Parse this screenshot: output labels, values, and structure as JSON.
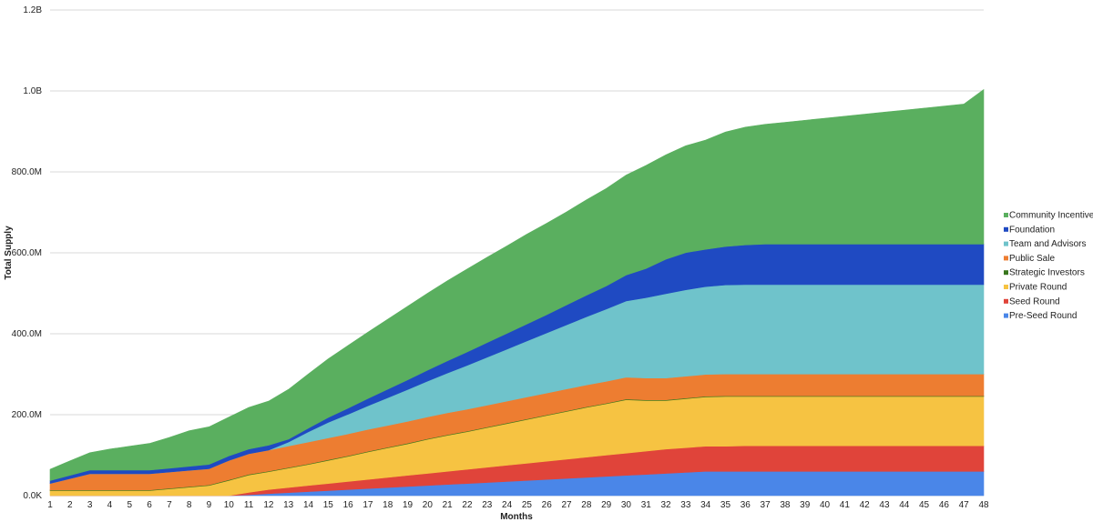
{
  "chart_data": {
    "type": "area",
    "stacked": true,
    "title": "",
    "xlabel": "Months",
    "ylabel": "Total Supply",
    "x": [
      1,
      2,
      3,
      4,
      5,
      6,
      7,
      8,
      9,
      10,
      11,
      12,
      13,
      14,
      15,
      16,
      17,
      18,
      19,
      20,
      21,
      22,
      23,
      24,
      25,
      26,
      27,
      28,
      29,
      30,
      31,
      32,
      33,
      34,
      35,
      36,
      37,
      38,
      39,
      40,
      41,
      42,
      43,
      44,
      45,
      46,
      47,
      48
    ],
    "x_tick_labels": [
      "1",
      "2",
      "3",
      "4",
      "5",
      "6",
      "7",
      "8",
      "9",
      "10",
      "11",
      "12",
      "13",
      "14",
      "15",
      "16",
      "17",
      "18",
      "19",
      "20",
      "21",
      "22",
      "23",
      "24",
      "25",
      "26",
      "27",
      "28",
      "29",
      "30",
      "31",
      "32",
      "33",
      "34",
      "35",
      "36",
      "37",
      "38",
      "39",
      "40",
      "41",
      "42",
      "43",
      "44",
      "45",
      "46",
      "47",
      "48"
    ],
    "ylim": [
      0,
      1200000000
    ],
    "y_ticks": [
      0,
      200000000,
      400000000,
      600000000,
      800000000,
      1000000000,
      1200000000
    ],
    "y_tick_labels": [
      "0.0K",
      "200.0M",
      "400.0M",
      "600.0M",
      "800.0M",
      "1.0B",
      "1.2B"
    ],
    "grid": true,
    "legend_position": "right",
    "legend_order": [
      "Community Incentives",
      "Foundation",
      "Team and Advisors",
      "Public Sale",
      "Strategic Investors",
      "Private Round",
      "Seed Round",
      "Pre-Seed Round"
    ],
    "series": [
      {
        "name": "Pre-Seed Round",
        "color": "#4a86e8",
        "values": [
          0,
          0,
          0,
          0,
          0,
          0,
          0,
          0,
          0,
          0,
          2000000,
          5000000,
          7500000,
          10000000,
          12500000,
          15000000,
          17500000,
          20000000,
          22500000,
          25000000,
          27500000,
          30000000,
          32500000,
          35000000,
          37500000,
          40000000,
          42500000,
          45000000,
          47500000,
          50000000,
          52500000,
          55000000,
          57500000,
          60000000,
          60000000,
          60000000,
          60000000,
          60000000,
          60000000,
          60000000,
          60000000,
          60000000,
          60000000,
          60000000,
          60000000,
          60000000,
          60000000,
          60000000
        ]
      },
      {
        "name": "Seed Round",
        "color": "#e0443a",
        "values": [
          0,
          0,
          0,
          0,
          0,
          0,
          0,
          0,
          0,
          0,
          6000000,
          10000000,
          12500000,
          15000000,
          17500000,
          20000000,
          22500000,
          25000000,
          27500000,
          30000000,
          32500000,
          35000000,
          37500000,
          40000000,
          42500000,
          45000000,
          47500000,
          50000000,
          52500000,
          55000000,
          57500000,
          60000000,
          61000000,
          62000000,
          62000000,
          63000000,
          63000000,
          63000000,
          63000000,
          63000000,
          63000000,
          63000000,
          63000000,
          63000000,
          63000000,
          63000000,
          63000000,
          63000000
        ]
      },
      {
        "name": "Private Round",
        "color": "#f6c342",
        "values": [
          12500000,
          12500000,
          12500000,
          12500000,
          12500000,
          12500000,
          16667000,
          20833000,
          25000000,
          37500000,
          43000000,
          44000000,
          48000000,
          52000000,
          57000000,
          62000000,
          68000000,
          73000000,
          78000000,
          84000000,
          89000000,
          93000000,
          98000000,
          103000000,
          108000000,
          113000000,
          118000000,
          123000000,
          127000000,
          132000000,
          125000000,
          120000000,
          121000000,
          122000000,
          123000000,
          122000000,
          122000000,
          122000000,
          122000000,
          122000000,
          122000000,
          122000000,
          122000000,
          122000000,
          122000000,
          122000000,
          122000000,
          122000000
        ]
      },
      {
        "name": "Strategic Investors",
        "color": "#38761d",
        "values": [
          1500000,
          1500000,
          1500000,
          1500000,
          1500000,
          1500000,
          1500000,
          1500000,
          1500000,
          1500000,
          1500000,
          1500000,
          1500000,
          1500000,
          1500000,
          1500000,
          1500000,
          1500000,
          1500000,
          1500000,
          1500000,
          1500000,
          1500000,
          1500000,
          1500000,
          1500000,
          1500000,
          1500000,
          1500000,
          1500000,
          1500000,
          1500000,
          1500000,
          1500000,
          1500000,
          1500000,
          1500000,
          1500000,
          1500000,
          1500000,
          1500000,
          1500000,
          1500000,
          1500000,
          1500000,
          1500000,
          1500000,
          1500000
        ]
      },
      {
        "name": "Public Sale",
        "color": "#ed7d31",
        "values": [
          16000000,
          28000000,
          40000000,
          40000000,
          40000000,
          40000000,
          40000000,
          40000000,
          40000000,
          48000000,
          51000000,
          52000000,
          53000000,
          54000000,
          54000000,
          54000000,
          54000000,
          54000000,
          54000000,
          54000000,
          54000000,
          54000000,
          54000000,
          54000000,
          54000000,
          54000000,
          54000000,
          54000000,
          54000000,
          54000000,
          54000000,
          54000000,
          54000000,
          54000000,
          54000000,
          54000000,
          54000000,
          54000000,
          54000000,
          54000000,
          54000000,
          54000000,
          54000000,
          54000000,
          54000000,
          54000000,
          54000000,
          54000000
        ]
      },
      {
        "name": "Team and Advisors",
        "color": "#6fc3cb",
        "values": [
          0,
          0,
          0,
          0,
          0,
          0,
          0,
          0,
          0,
          0,
          0,
          0,
          10000000,
          25000000,
          38500000,
          48500000,
          58500000,
          68500000,
          78500000,
          88500000,
          98500000,
          108500000,
          118500000,
          128500000,
          138500000,
          148500000,
          158500000,
          168500000,
          178500000,
          188500000,
          198500000,
          208500000,
          213500000,
          217000000,
          220000000,
          221000000,
          221000000,
          221000000,
          221000000,
          221000000,
          221000000,
          221000000,
          221000000,
          221000000,
          221000000,
          221000000,
          221000000,
          221000000
        ]
      },
      {
        "name": "Foundation",
        "color": "#1f4ac2",
        "values": [
          7000000,
          8000000,
          9000000,
          9000000,
          9000000,
          9000000,
          9500000,
          10000000,
          10500000,
          11000000,
          11500000,
          12000000,
          7000000,
          9000000,
          12000000,
          15000000,
          18000000,
          21000000,
          24000000,
          27000000,
          30000000,
          33000000,
          36000000,
          39000000,
          42000000,
          45000000,
          49000000,
          53000000,
          57000000,
          64000000,
          72000000,
          85000000,
          92000000,
          92000000,
          95000000,
          98000000,
          100000000,
          100000000,
          100000000,
          100000000,
          100000000,
          100000000,
          100000000,
          100000000,
          100000000,
          100000000,
          100000000,
          100000000
        ]
      },
      {
        "name": "Community Incentives",
        "color": "#5aaf5f",
        "values": [
          28000000,
          36000000,
          43000000,
          52000000,
          59000000,
          66000000,
          76000000,
          88000000,
          93000000,
          96000000,
          103000000,
          109000000,
          123000000,
          134000000,
          145000000,
          155000000,
          164000000,
          173000000,
          182000000,
          190000000,
          198000000,
          205000000,
          211000000,
          216000000,
          222000000,
          226000000,
          230000000,
          236000000,
          241000000,
          247000000,
          255000000,
          258000000,
          264000000,
          270000000,
          283000000,
          291000000,
          296000000,
          301000000,
          306000000,
          311000000,
          316000000,
          321000000,
          326000000,
          331000000,
          336000000,
          341000000,
          346000000,
          382000000
        ]
      }
    ]
  }
}
